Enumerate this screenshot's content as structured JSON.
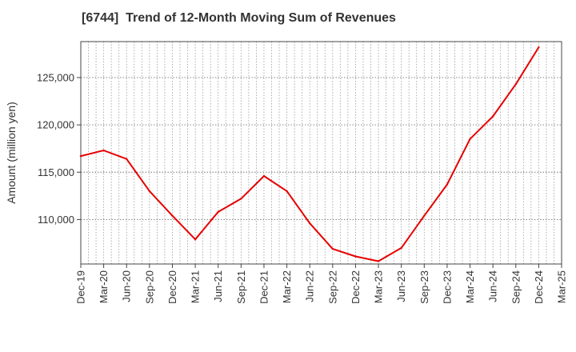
{
  "chart_data": {
    "type": "line",
    "title": "[6744]  Trend of 12-Month Moving Sum of Revenues",
    "xlabel": "",
    "ylabel": "Amount (million yen)",
    "categories": [
      "Dec-19",
      "Mar-20",
      "Jun-20",
      "Sep-20",
      "Dec-20",
      "Mar-21",
      "Jun-21",
      "Sep-21",
      "Dec-21",
      "Mar-22",
      "Jun-22",
      "Sep-22",
      "Dec-22",
      "Mar-23",
      "Jun-23",
      "Sep-23",
      "Dec-23",
      "Mar-24",
      "Jun-24",
      "Sep-24",
      "Dec-24",
      "Mar-25"
    ],
    "yticks": [
      110000,
      115000,
      120000,
      125000
    ],
    "ytick_labels": [
      "110,000",
      "115,000",
      "120,000",
      "125,000"
    ],
    "ylim": [
      105300,
      128800
    ],
    "grid": true,
    "series": [
      {
        "color": "#e60000",
        "values": [
          116700,
          117300,
          116400,
          113000,
          110400,
          107900,
          110800,
          112200,
          114600,
          113000,
          109600,
          106900,
          106100,
          105600,
          107000,
          110400,
          113700,
          118500,
          120900,
          124300,
          128200,
          null
        ]
      }
    ]
  }
}
